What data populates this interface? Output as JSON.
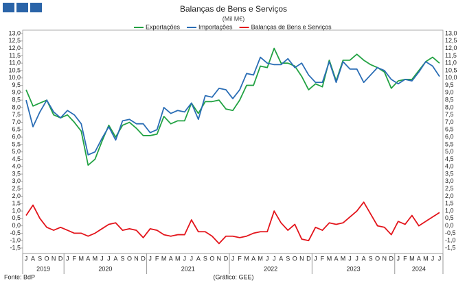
{
  "chart_data": {
    "type": "line",
    "title": "Balanças de Bens e Serviços",
    "subtitle": "(Mil M€)",
    "source": "Fonte: BdP",
    "credit": "(Gráfico: GEE)",
    "categories": [
      "J",
      "A",
      "S",
      "O",
      "N",
      "D",
      "J",
      "F",
      "M",
      "A",
      "M",
      "J",
      "J",
      "A",
      "S",
      "O",
      "N",
      "D",
      "J",
      "F",
      "M",
      "A",
      "M",
      "J",
      "J",
      "A",
      "S",
      "O",
      "N",
      "D",
      "J",
      "F",
      "M",
      "A",
      "M",
      "J",
      "J",
      "A",
      "S",
      "O",
      "N",
      "D",
      "J",
      "F",
      "M",
      "A",
      "M",
      "J",
      "J",
      "A",
      "S",
      "O",
      "N",
      "D",
      "J",
      "F",
      "M",
      "A",
      "M",
      "J",
      "J"
    ],
    "years": [
      "2019",
      "2020",
      "2021",
      "2022",
      "2023",
      "2024"
    ],
    "series": [
      {
        "name": "Exportações",
        "color": "#22a243",
        "values": [
          9.2,
          8.1,
          8.3,
          8.5,
          7.5,
          7.3,
          7.5,
          7.0,
          6.4,
          4.1,
          4.5,
          5.7,
          6.8,
          6.0,
          6.8,
          7.0,
          6.6,
          6.1,
          6.1,
          6.2,
          7.4,
          6.9,
          7.1,
          7.1,
          8.3,
          7.6,
          8.4,
          8.4,
          8.5,
          7.9,
          7.8,
          8.5,
          9.5,
          9.5,
          10.8,
          10.7,
          12.0,
          11.0,
          11.0,
          10.8,
          10.1,
          9.2,
          9.6,
          9.4,
          11.2,
          9.8,
          11.2,
          11.2,
          11.6,
          11.2,
          10.9,
          10.7,
          10.4,
          9.3,
          9.8,
          9.9,
          9.9,
          10.5,
          11.1,
          11.4,
          11.0
        ]
      },
      {
        "name": "Importações",
        "color": "#2a6db5",
        "values": [
          8.5,
          6.7,
          7.7,
          8.5,
          7.7,
          7.3,
          7.8,
          7.5,
          6.9,
          4.8,
          5.0,
          5.9,
          6.7,
          5.8,
          7.1,
          7.2,
          6.9,
          6.9,
          6.3,
          6.5,
          8.0,
          7.6,
          7.8,
          7.7,
          8.3,
          7.2,
          8.8,
          8.7,
          9.3,
          9.2,
          8.6,
          9.2,
          10.3,
          10.2,
          11.4,
          11.0,
          10.9,
          10.9,
          11.3,
          10.7,
          11.0,
          10.2,
          9.7,
          9.7,
          11.1,
          9.7,
          11.1,
          10.6,
          10.6,
          9.7,
          10.2,
          10.7,
          10.5,
          9.9,
          9.6,
          9.9,
          9.8,
          10.4,
          11.1,
          10.8,
          10.1
        ]
      },
      {
        "name": "Balanças de Bens e Serviços",
        "color": "#e3141b",
        "values": [
          0.7,
          1.4,
          0.5,
          -0.1,
          -0.3,
          -0.1,
          -0.3,
          -0.5,
          -0.5,
          -0.7,
          -0.5,
          -0.2,
          0.1,
          0.2,
          -0.3,
          -0.2,
          -0.3,
          -0.8,
          -0.2,
          -0.3,
          -0.6,
          -0.7,
          -0.6,
          -0.6,
          0.4,
          -0.4,
          -0.4,
          -0.7,
          -1.2,
          -0.7,
          -0.7,
          -0.8,
          -0.7,
          -0.5,
          -0.4,
          -0.4,
          1.0,
          0.2,
          -0.3,
          0.1,
          -0.9,
          -1.0,
          -0.1,
          -0.3,
          0.2,
          0.1,
          0.2,
          0.6,
          1.0,
          1.6,
          0.8,
          0.0,
          -0.1,
          -0.6,
          0.3,
          0.1,
          0.7,
          0.0,
          0.3,
          0.6,
          0.9
        ]
      }
    ],
    "ylim": [
      -1.5,
      13.0
    ],
    "yticks": [
      {
        "value": -1.5,
        "label": "-1,5"
      },
      {
        "value": -1,
        "label": "-1,0"
      },
      {
        "value": -0.5,
        "label": "-0,5"
      },
      {
        "value": 0,
        "label": "0,0"
      },
      {
        "value": 0.5,
        "label": "0,5"
      },
      {
        "value": 1,
        "label": "1,0"
      },
      {
        "value": 1.5,
        "label": "1,5"
      },
      {
        "value": 2,
        "label": "2,0"
      },
      {
        "value": 2.5,
        "label": "2,5"
      },
      {
        "value": 3,
        "label": "3,0"
      },
      {
        "value": 3.5,
        "label": "3,5"
      },
      {
        "value": 4,
        "label": "4,0"
      },
      {
        "value": 4.5,
        "label": "4,5"
      },
      {
        "value": 5,
        "label": "5,0"
      },
      {
        "value": 5.5,
        "label": "5,5"
      },
      {
        "value": 6,
        "label": "6,0"
      },
      {
        "value": 6.5,
        "label": "6,5"
      },
      {
        "value": 7,
        "label": "7,0"
      },
      {
        "value": 7.5,
        "label": "7,5"
      },
      {
        "value": 8,
        "label": "8,0"
      },
      {
        "value": 8.5,
        "label": "8,5"
      },
      {
        "value": 9,
        "label": "9,0"
      },
      {
        "value": 9.5,
        "label": "9,5"
      },
      {
        "value": 10,
        "label": "10,0"
      },
      {
        "value": 10.5,
        "label": "10,5"
      },
      {
        "value": 11,
        "label": "11,0"
      },
      {
        "value": 11.5,
        "label": "11,5"
      },
      {
        "value": 12,
        "label": "12,0"
      },
      {
        "value": 12.5,
        "label": "12,5"
      },
      {
        "value": 13,
        "label": "13,0"
      }
    ],
    "grid": false
  }
}
